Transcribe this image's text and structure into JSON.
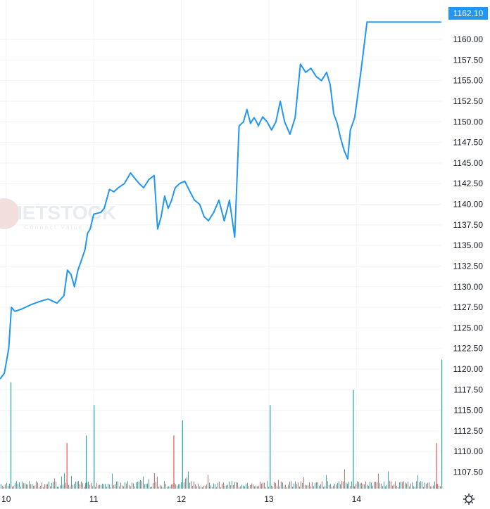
{
  "watermark": {
    "text": "IETSTOCK",
    "subtitle": "Connect Value"
  },
  "last_price_label": "1162.10",
  "settings_icon": "gear-icon",
  "colors": {
    "line": "#2196f3",
    "volume_up": "#26a69a",
    "volume_down": "#ef5350",
    "grid": "#f0f3fa",
    "axis_text": "#131722",
    "label_bg": "#2196f3"
  },
  "chart_data": {
    "type": "line",
    "title": "",
    "xlabel": "",
    "ylabel": "",
    "grid": true,
    "y_axis_position": "right",
    "ylim": [
      1105.5,
      1163.5
    ],
    "xlim": [
      9.93,
      14.97
    ],
    "x_ticks": [
      10,
      11,
      12,
      13,
      14
    ],
    "x_tick_labels": [
      "10",
      "11",
      "12",
      "13",
      "14"
    ],
    "y_ticks": [
      1107.5,
      1110.0,
      1112.5,
      1115.0,
      1117.5,
      1120.0,
      1122.5,
      1125.0,
      1127.5,
      1130.0,
      1132.5,
      1135.0,
      1137.5,
      1140.0,
      1142.5,
      1145.0,
      1147.5,
      1150.0,
      1152.5,
      1155.0,
      1157.5,
      1160.0
    ],
    "y_tick_labels": [
      "1107.50",
      "1110.00",
      "1112.50",
      "1115.00",
      "1117.50",
      "1120.00",
      "1122.50",
      "1125.00",
      "1127.50",
      "1130.00",
      "1132.50",
      "1135.00",
      "1137.50",
      "1140.00",
      "1142.50",
      "1145.00",
      "1147.50",
      "1150.00",
      "1152.50",
      "1155.00",
      "1157.50",
      "1160.00"
    ],
    "series": [
      {
        "type": "line",
        "x": [
          9.93,
          9.98,
          10.03,
          10.06,
          10.1,
          10.18,
          10.28,
          10.38,
          10.48,
          10.58,
          10.66,
          10.7,
          10.74,
          10.78,
          10.82,
          10.87,
          10.9,
          10.93,
          10.96,
          11.0,
          11.04,
          11.08,
          11.12,
          11.18,
          11.23,
          11.28,
          11.35,
          11.42,
          11.48,
          11.52,
          11.57,
          11.63,
          11.69,
          11.73,
          11.77,
          11.81,
          11.85,
          11.89,
          11.93,
          11.98,
          12.04,
          12.1,
          12.15,
          12.21,
          12.26,
          12.31,
          12.37,
          12.43,
          12.49,
          12.55,
          12.61,
          12.66,
          12.71,
          12.75,
          12.79,
          12.83,
          12.86,
          12.88,
          12.9,
          12.93,
          12.98,
          13.03,
          13.08,
          13.13,
          13.18,
          13.24,
          13.3,
          13.36,
          13.42,
          13.48,
          13.54,
          13.6,
          13.66,
          13.7,
          13.74,
          13.78,
          13.82,
          13.86,
          13.9,
          13.93,
          13.98,
          14.05,
          14.12,
          14.19,
          14.26,
          14.33,
          14.4,
          14.46,
          14.52,
          14.56,
          14.6,
          14.64,
          14.68,
          14.72,
          14.75,
          14.77,
          14.8,
          14.82,
          14.85,
          14.87,
          14.9,
          14.92,
          14.95,
          14.96,
          14.97
        ],
        "y": [
          1118.8,
          1119.5,
          1122.5,
          1127.5,
          1127.0,
          1127.3,
          1127.8,
          1128.2,
          1128.5,
          1128.0,
          1128.9,
          1132.0,
          1131.5,
          1130.0,
          1132.0,
          1133.5,
          1134.5,
          1136.5,
          1137.0,
          1138.8,
          1138.9,
          1139.0,
          1139.5,
          1141.8,
          1141.5,
          1142.0,
          1142.5,
          1143.8,
          1143.0,
          1142.5,
          1142.0,
          1143.0,
          1143.5,
          1137.0,
          1138.5,
          1141.0,
          1139.5,
          1140.5,
          1142.0,
          1142.5,
          1142.8,
          1141.5,
          1140.5,
          1140.0,
          1138.5,
          1138.0,
          1139.0,
          1140.5,
          1138.0,
          1140.5,
          1136.0,
          1149.5,
          1150.0,
          1151.5,
          1149.8,
          1150.5,
          1150.0,
          1149.5,
          1150.0,
          1150.6,
          1150.0,
          1149.0,
          1150.0,
          1152.5,
          1150.0,
          1148.5,
          1150.5,
          1157.0,
          1156.0,
          1156.5,
          1155.5,
          1155.0,
          1156.0,
          1154.5,
          1151.0,
          1149.8,
          1148.0,
          1146.5,
          1145.5,
          1149.0,
          1150.5,
          1156.0,
          1162.1,
          1162.1,
          1162.1,
          1162.1,
          1162.1,
          1162.1,
          1162.1,
          1162.1,
          1162.1,
          1162.1,
          1162.1,
          1162.1,
          1162.1,
          1162.1,
          1162.1,
          1162.1,
          1162.1,
          1162.1,
          1162.1,
          1162.1,
          1162.1,
          1162.1,
          1162.1
        ]
      }
    ],
    "volume_spikes": [
      {
        "x": 10.05,
        "v": 14,
        "up": true
      },
      {
        "x": 10.69,
        "v": 6,
        "up": false
      },
      {
        "x": 10.91,
        "v": 7,
        "up": true
      },
      {
        "x": 11.0,
        "v": 11,
        "up": true
      },
      {
        "x": 11.91,
        "v": 7,
        "up": false
      },
      {
        "x": 12.01,
        "v": 9,
        "up": true
      },
      {
        "x": 13.01,
        "v": 11,
        "up": true
      },
      {
        "x": 13.96,
        "v": 13,
        "up": true
      },
      {
        "x": 14.91,
        "v": 6,
        "up": false
      },
      {
        "x": 14.97,
        "v": 17,
        "up": true
      }
    ]
  }
}
